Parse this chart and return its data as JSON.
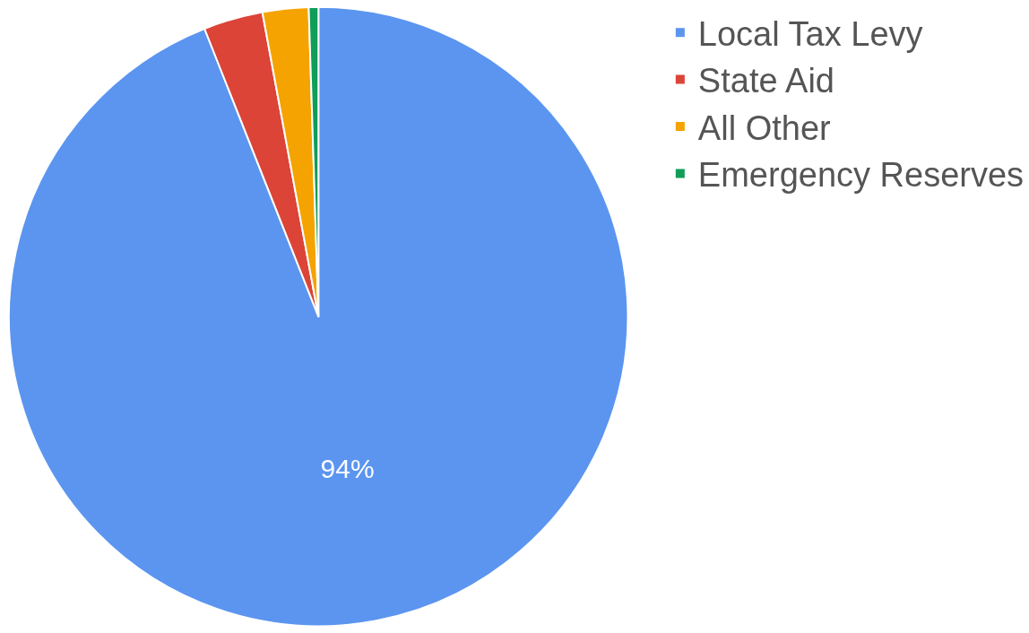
{
  "chart_data": {
    "type": "pie",
    "categories": [
      "Local Tax Levy",
      "State Aid",
      "All Other",
      "Emergency Reserves"
    ],
    "values": [
      94,
      3.1,
      2.4,
      0.5
    ],
    "colors": [
      "#5b95f0",
      "#db4437",
      "#f4a300",
      "#0f9d58"
    ],
    "value_labels": [
      "94%",
      null,
      null,
      null
    ],
    "legend": "top right"
  }
}
